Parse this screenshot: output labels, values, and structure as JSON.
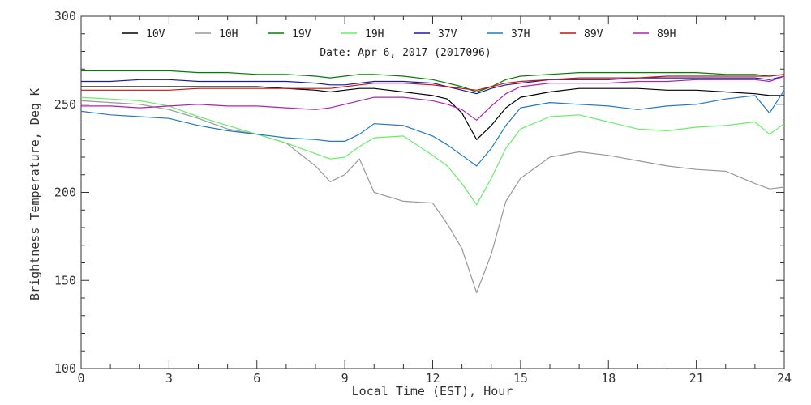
{
  "chart_data": {
    "type": "line",
    "title": "",
    "subtitle": "Date: Apr  6, 2017 (2017096)",
    "xlabel": "Local Time (EST), Hour",
    "ylabel": "Brightness Temperature, Deg K",
    "xlim": [
      0,
      24
    ],
    "ylim": [
      100,
      300
    ],
    "xticks": [
      0,
      3,
      6,
      9,
      12,
      15,
      18,
      21,
      24
    ],
    "yticks": [
      100,
      150,
      200,
      250,
      300
    ],
    "x": [
      0,
      1,
      2,
      3,
      4,
      5,
      6,
      7,
      8,
      8.5,
      9,
      9.5,
      10,
      11,
      12,
      12.5,
      13,
      13.5,
      14,
      14.5,
      15,
      16,
      17,
      18,
      19,
      20,
      21,
      22,
      23,
      23.5,
      24
    ],
    "series": [
      {
        "name": "10V",
        "color": "#000000",
        "values": [
          260,
          260,
          260,
          260,
          260,
          260,
          260,
          259,
          258,
          257,
          258,
          259,
          259,
          257,
          255,
          253,
          245,
          230,
          238,
          248,
          254,
          257,
          259,
          259,
          259,
          258,
          258,
          257,
          256,
          255,
          255
        ]
      },
      {
        "name": "10H",
        "color": "#999999",
        "values": [
          252,
          251,
          250,
          247,
          242,
          236,
          233,
          228,
          215,
          206,
          210,
          219,
          200,
          195,
          194,
          182,
          168,
          143,
          165,
          195,
          208,
          220,
          223,
          221,
          218,
          215,
          213,
          212,
          205,
          202,
          203
        ]
      },
      {
        "name": "19V",
        "color": "#008000",
        "values": [
          269,
          269,
          269,
          269,
          268,
          268,
          267,
          267,
          266,
          265,
          266,
          267,
          267,
          266,
          264,
          262,
          260,
          257,
          260,
          264,
          266,
          267,
          268,
          268,
          268,
          268,
          268,
          267,
          267,
          266,
          267
        ]
      },
      {
        "name": "19H",
        "color": "#66ee66",
        "values": [
          254,
          253,
          252,
          249,
          243,
          238,
          233,
          228,
          222,
          219,
          220,
          226,
          231,
          232,
          221,
          215,
          205,
          193,
          208,
          225,
          236,
          243,
          244,
          240,
          236,
          235,
          237,
          238,
          240,
          233,
          239
        ]
      },
      {
        "name": "37V",
        "color": "#1a1aa6",
        "values": [
          263,
          263,
          264,
          264,
          263,
          263,
          263,
          263,
          262,
          261,
          261,
          262,
          263,
          263,
          262,
          260,
          258,
          256,
          259,
          261,
          262,
          264,
          264,
          264,
          265,
          265,
          265,
          265,
          265,
          264,
          266
        ]
      },
      {
        "name": "37H",
        "color": "#1f78c8",
        "values": [
          246,
          244,
          243,
          242,
          238,
          235,
          233,
          231,
          230,
          229,
          229,
          233,
          239,
          238,
          232,
          227,
          221,
          215,
          225,
          238,
          248,
          251,
          250,
          249,
          247,
          249,
          250,
          253,
          255,
          245,
          258
        ]
      },
      {
        "name": "89V",
        "color": "#cc1111",
        "values": [
          258,
          258,
          258,
          258,
          259,
          259,
          259,
          259,
          259,
          259,
          260,
          261,
          262,
          262,
          261,
          260,
          259,
          258,
          260,
          262,
          263,
          264,
          265,
          265,
          265,
          266,
          266,
          266,
          266,
          266,
          267
        ]
      },
      {
        "name": "89H",
        "color": "#b020b0",
        "values": [
          249,
          249,
          248,
          249,
          250,
          249,
          249,
          248,
          247,
          248,
          250,
          252,
          254,
          254,
          252,
          250,
          247,
          241,
          249,
          256,
          260,
          262,
          262,
          262,
          263,
          263,
          264,
          264,
          264,
          263,
          266
        ]
      }
    ]
  }
}
